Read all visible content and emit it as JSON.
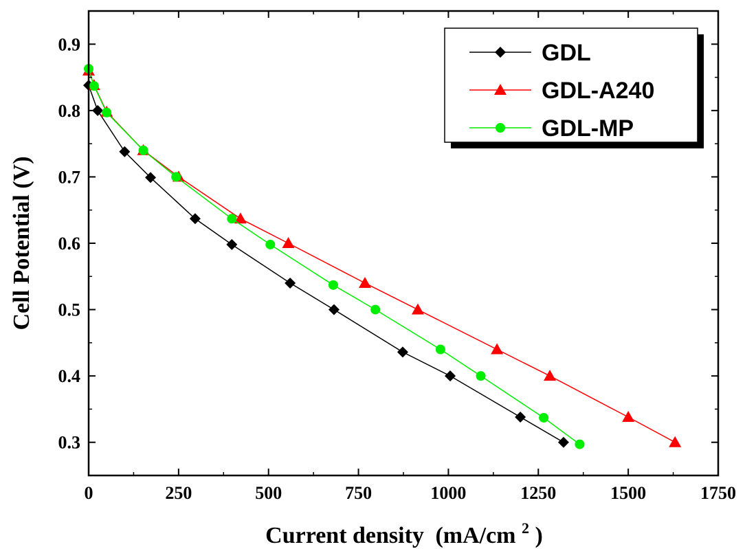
{
  "chart_data": {
    "type": "line",
    "xlabel": "Current density",
    "xlabel_unit_prefix": "(mA/cm",
    "xlabel_unit_sup": "2",
    "xlabel_unit_suffix": ")",
    "ylabel": "Cell Potential (V)",
    "xlim": [
      0,
      1750
    ],
    "ylim": [
      0.25,
      0.95
    ],
    "x_ticks": [
      "0",
      "250",
      "500",
      "750",
      "1000",
      "1250",
      "1500",
      "1750"
    ],
    "y_ticks": [
      "0.3",
      "0.4",
      "0.5",
      "0.6",
      "0.7",
      "0.8",
      "0.9"
    ],
    "legend_position": "top-right",
    "series": [
      {
        "name": "GDL",
        "color": "#000000",
        "marker": "diamond",
        "x": [
          0,
          25,
          100,
          172,
          296,
          398,
          560,
          682,
          873,
          1005,
          1200,
          1320
        ],
        "y": [
          0.838,
          0.8,
          0.738,
          0.699,
          0.637,
          0.598,
          0.54,
          0.5,
          0.436,
          0.4,
          0.338,
          0.3
        ]
      },
      {
        "name": "GDL-A240",
        "color": "#ff0000",
        "marker": "triangle",
        "x": [
          0,
          15,
          50,
          152,
          250,
          422,
          555,
          768,
          915,
          1135,
          1282,
          1500,
          1630
        ],
        "y": [
          0.86,
          0.838,
          0.798,
          0.74,
          0.7,
          0.637,
          0.6,
          0.54,
          0.5,
          0.44,
          0.4,
          0.338,
          0.3
        ]
      },
      {
        "name": "GDL-MP",
        "color": "#00ee00",
        "marker": "circle",
        "x": [
          0,
          15,
          50,
          152,
          243,
          398,
          505,
          680,
          797,
          978,
          1090,
          1265,
          1365
        ],
        "y": [
          0.863,
          0.837,
          0.797,
          0.74,
          0.7,
          0.637,
          0.598,
          0.537,
          0.5,
          0.44,
          0.4,
          0.337,
          0.297
        ]
      }
    ]
  }
}
